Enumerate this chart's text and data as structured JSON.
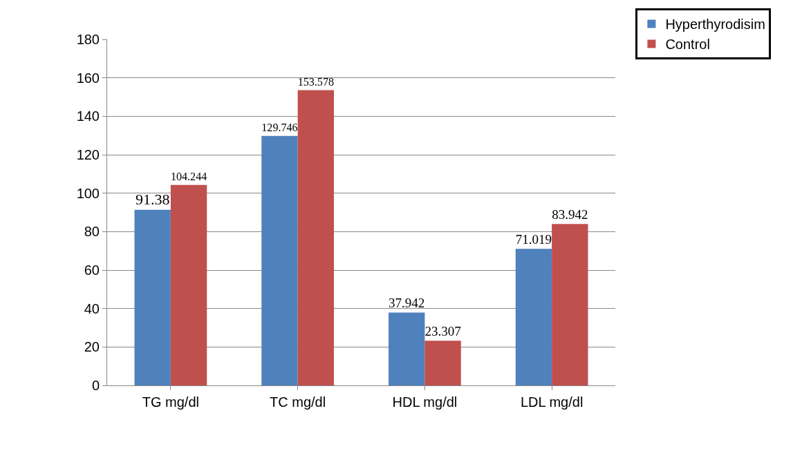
{
  "chart_data": {
    "type": "bar",
    "categories": [
      "TG mg/dl",
      "TC mg/dl",
      "HDL mg/dl",
      "LDL mg/dl"
    ],
    "series": [
      {
        "name": "Hyperthyrodisim",
        "color": "#4f81bd",
        "values": [
          91.38,
          129.746,
          37.942,
          71.019
        ]
      },
      {
        "name": "Control",
        "color": "#c0504d",
        "values": [
          104.244,
          153.578,
          23.307,
          83.942
        ]
      }
    ],
    "ylim": [
      0,
      180
    ],
    "yticks": [
      0,
      20,
      40,
      60,
      80,
      100,
      120,
      140,
      160,
      180
    ],
    "grid": "y",
    "legend": "top right",
    "data_labels": true
  }
}
